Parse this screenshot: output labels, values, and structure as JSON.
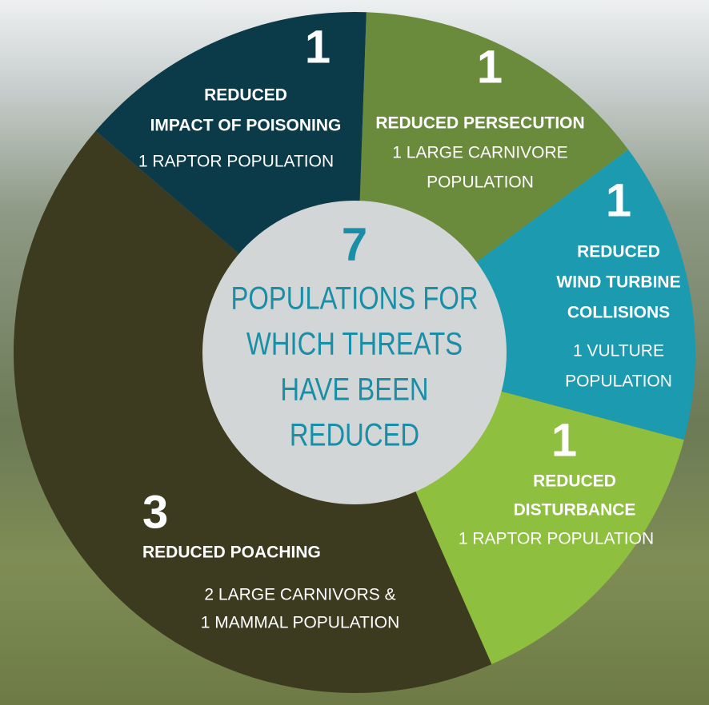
{
  "chart_data": {
    "type": "donut",
    "center_value": 7,
    "center_label_lines": [
      "POPULATIONS FOR",
      "WHICH THREATS",
      "HAVE BEEN",
      "REDUCED"
    ],
    "center_color": "#1a8ea6",
    "segments": [
      {
        "value": 1,
        "color": "#6a8a3c",
        "name_lines": [
          "REDUCED PERSECUTION"
        ],
        "description_lines": [
          "1 LARGE CARNIVORE",
          "POPULATION"
        ]
      },
      {
        "value": 1,
        "color": "#1b9ab0",
        "name_lines": [
          "REDUCED",
          "WIND TURBINE",
          "COLLISIONS"
        ],
        "description_lines": [
          "1 VULTURE",
          "POPULATION"
        ]
      },
      {
        "value": 1,
        "color": "#8fbf3f",
        "name_lines": [
          "REDUCED",
          "DISTURBANCE"
        ],
        "description_lines": [
          "1 RAPTOR POPULATION"
        ]
      },
      {
        "value": 3,
        "color": "#3c3a1f",
        "name_lines": [
          "REDUCED POACHING"
        ],
        "description_lines": [
          "2 LARGE CARNIVORS &",
          "1 MAMMAL POPULATION"
        ]
      },
      {
        "value": 1,
        "color": "#0b3a48",
        "name_lines": [
          "REDUCED",
          "IMPACT OF POISONING"
        ],
        "description_lines": [
          "1 RAPTOR POPULATION"
        ]
      }
    ]
  }
}
